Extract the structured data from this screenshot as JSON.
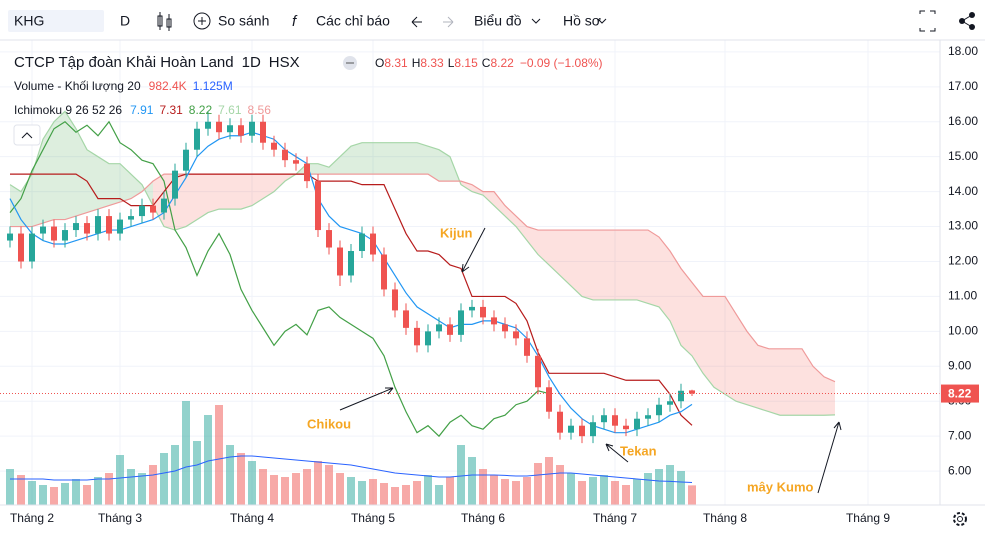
{
  "toolbar": {
    "symbol": "KHG",
    "interval": "D",
    "compare": "So sánh",
    "indicators": "Các chỉ báo",
    "chart_type": "Biểu đồ",
    "profile": "Hồ sơ"
  },
  "chart_data": {
    "type": "candlestick",
    "title": "CTCP Tập đoàn Khải Hoàn Land",
    "interval": "1D",
    "exchange": "HSX",
    "ohlc_prefixes": [
      "O",
      "H",
      "L",
      "C"
    ],
    "change": "−0.09 (−1.08%)",
    "up_color": "#26a69a",
    "down_color": "#ef5350",
    "open": [
      12.6,
      12.8,
      12.0,
      12.8,
      13.0,
      12.6,
      12.9,
      13.1,
      12.8,
      13.3,
      12.8,
      13.2,
      13.3,
      13.6,
      13.4,
      13.8,
      14.6,
      15.2,
      15.8,
      16.0,
      15.7,
      15.9,
      15.6,
      16.0,
      15.4,
      15.2,
      14.9,
      14.8,
      14.3,
      12.9,
      12.4,
      11.6,
      12.3,
      12.8,
      12.2,
      11.2,
      10.6,
      10.1,
      9.6,
      10.0,
      10.2,
      9.9,
      10.6,
      10.7,
      10.4,
      10.2,
      10.0,
      9.8,
      9.3,
      8.4,
      7.7,
      7.1,
      7.3,
      7.0,
      7.4,
      7.6,
      7.3,
      7.2,
      7.5,
      7.6,
      7.9,
      8.0,
      8.31
    ],
    "high": [
      13.0,
      13.0,
      13.0,
      13.2,
      13.2,
      13.1,
      13.3,
      13.3,
      13.5,
      13.5,
      13.4,
      13.5,
      13.8,
      13.8,
      14.0,
      14.8,
      15.4,
      16.0,
      16.3,
      16.2,
      16.1,
      16.1,
      16.2,
      16.2,
      15.6,
      15.4,
      15.1,
      15.0,
      14.5,
      13.1,
      12.6,
      12.5,
      13.0,
      13.0,
      12.4,
      11.4,
      10.8,
      10.3,
      10.2,
      10.4,
      10.4,
      10.8,
      10.9,
      10.9,
      10.6,
      10.4,
      10.2,
      10.0,
      9.5,
      8.6,
      7.9,
      7.5,
      7.5,
      7.6,
      7.8,
      7.8,
      7.5,
      7.7,
      7.8,
      8.1,
      8.2,
      8.5,
      8.33
    ],
    "low": [
      12.4,
      11.8,
      11.8,
      12.6,
      12.4,
      12.4,
      12.7,
      12.6,
      12.6,
      12.6,
      12.6,
      13.0,
      13.1,
      13.2,
      13.2,
      13.6,
      14.4,
      15.0,
      15.6,
      15.5,
      15.5,
      15.4,
      15.4,
      15.2,
      15.0,
      14.7,
      14.6,
      14.1,
      12.7,
      12.2,
      11.3,
      11.4,
      12.1,
      12.0,
      11.0,
      10.4,
      9.9,
      9.4,
      9.4,
      9.8,
      9.7,
      9.7,
      10.4,
      10.2,
      10.0,
      9.8,
      9.6,
      9.1,
      8.2,
      7.5,
      6.9,
      6.9,
      6.8,
      6.8,
      7.2,
      7.1,
      7.0,
      7.0,
      7.3,
      7.4,
      7.7,
      7.8,
      8.15
    ],
    "close": [
      12.8,
      12.0,
      12.8,
      13.0,
      12.6,
      12.9,
      13.1,
      12.8,
      13.3,
      12.8,
      13.2,
      13.3,
      13.6,
      13.4,
      13.8,
      14.6,
      15.2,
      15.8,
      16.0,
      15.7,
      15.9,
      15.6,
      16.0,
      15.4,
      15.2,
      14.9,
      14.8,
      14.3,
      12.9,
      12.4,
      11.6,
      12.3,
      12.8,
      12.2,
      11.2,
      10.6,
      10.1,
      9.6,
      10.0,
      10.2,
      9.9,
      10.6,
      10.7,
      10.4,
      10.2,
      10.0,
      9.8,
      9.3,
      8.4,
      7.7,
      7.1,
      7.3,
      7.0,
      7.4,
      7.6,
      7.3,
      7.2,
      7.5,
      7.6,
      7.9,
      8.0,
      8.3,
      8.22
    ],
    "volume": {
      "name": "Volume - Khối lượng 20",
      "last_label": "982.4K",
      "ma_last_label": "1.125M",
      "ma_color": "#2962ff",
      "values": [
        1800,
        1500,
        1200,
        1000,
        900,
        1100,
        1300,
        1000,
        1400,
        1600,
        2500,
        1800,
        1600,
        2000,
        2600,
        3000,
        5200,
        3200,
        4500,
        5000,
        3000,
        2600,
        2200,
        1800,
        1500,
        1400,
        1600,
        1800,
        2200,
        2000,
        1600,
        1400,
        1200,
        1300,
        1100,
        900,
        1000,
        1200,
        1500,
        1000,
        1400,
        3000,
        2400,
        1800,
        1500,
        1300,
        1200,
        1400,
        2100,
        2400,
        2000,
        1600,
        1200,
        1400,
        1500,
        1200,
        1000,
        1300,
        1600,
        1800,
        2000,
        1700,
        982.4
      ],
      "ma_values": [
        1300,
        1300,
        1300,
        1300,
        1250,
        1250,
        1250,
        1250,
        1300,
        1300,
        1350,
        1400,
        1450,
        1500,
        1600,
        1700,
        1900,
        2000,
        2200,
        2300,
        2400,
        2450,
        2450,
        2400,
        2350,
        2300,
        2250,
        2200,
        2150,
        2100,
        2050,
        2000,
        1900,
        1800,
        1700,
        1600,
        1550,
        1500,
        1450,
        1400,
        1400,
        1450,
        1500,
        1500,
        1500,
        1480,
        1450,
        1450,
        1500,
        1550,
        1600,
        1600,
        1550,
        1500,
        1450,
        1400,
        1350,
        1300,
        1250,
        1200,
        1180,
        1150,
        1125
      ]
    },
    "ichimoku": {
      "name": "Ichimoku 9 26 52 26",
      "tenkan": {
        "color": "#2196f3",
        "values": [
          13.8,
          13.2,
          12.8,
          12.6,
          12.5,
          12.5,
          12.6,
          12.7,
          12.8,
          12.9,
          12.9,
          13.0,
          13.1,
          13.2,
          13.4,
          13.9,
          14.4,
          15.0,
          15.3,
          15.5,
          15.6,
          15.6,
          15.7,
          15.6,
          15.5,
          15.2,
          15.0,
          14.8,
          13.8,
          13.3,
          13.0,
          12.9,
          12.8,
          12.6,
          12.1,
          11.6,
          11.1,
          10.7,
          10.5,
          10.3,
          10.1,
          10.2,
          10.2,
          10.3,
          10.3,
          10.2,
          10.1,
          9.8,
          9.3,
          8.7,
          8.2,
          7.8,
          7.5,
          7.3,
          7.2,
          7.1,
          7.1,
          7.2,
          7.3,
          7.4,
          7.6,
          7.7,
          7.91
        ]
      },
      "kijun": {
        "color": "#b71c1c",
        "values": [
          14.5,
          14.5,
          14.5,
          14.5,
          14.5,
          14.5,
          14.5,
          14.3,
          13.8,
          13.8,
          13.8,
          13.6,
          13.6,
          13.6,
          14.0,
          14.4,
          14.5,
          14.5,
          14.5,
          14.5,
          14.5,
          14.5,
          14.5,
          14.5,
          14.5,
          14.5,
          14.5,
          14.5,
          14.3,
          14.3,
          14.3,
          14.3,
          14.2,
          14.2,
          14.2,
          13.5,
          12.8,
          12.3,
          12.3,
          12.2,
          11.9,
          11.8,
          11.0,
          11.0,
          11.0,
          11.0,
          10.8,
          10.3,
          9.4,
          8.8,
          8.8,
          8.8,
          8.8,
          8.8,
          8.8,
          8.7,
          8.6,
          8.6,
          8.6,
          8.6,
          8.2,
          7.6,
          7.31
        ]
      },
      "chikou": {
        "color": "#43a047",
        "values": [
          13.4,
          13.8,
          14.6,
          15.2,
          15.8,
          16.0,
          15.7,
          15.9,
          15.6,
          16.0,
          15.4,
          15.2,
          14.9,
          14.8,
          14.3,
          12.9,
          12.4,
          11.6,
          12.3,
          12.8,
          12.2,
          11.2,
          10.6,
          10.1,
          9.6,
          10.0,
          10.2,
          9.9,
          10.6,
          10.7,
          10.4,
          10.2,
          10.0,
          9.8,
          9.3,
          8.4,
          7.7,
          7.1,
          7.3,
          7.0,
          7.4,
          7.6,
          7.3,
          7.2,
          7.5,
          7.6,
          7.9,
          8.0,
          8.3,
          8.22
        ]
      },
      "span_a": {
        "color": "#a5d6a7",
        "fill": "rgba(67,160,71,0.18)",
        "values": [
          14.2,
          14.0,
          14.5,
          15.5,
          16.0,
          16.3,
          15.8,
          15.2,
          15.0,
          14.8,
          14.8,
          14.5,
          14.2,
          13.6,
          13.0,
          12.9,
          13.0,
          13.2,
          13.4,
          13.5,
          13.5,
          13.5,
          13.6,
          13.8,
          14.0,
          14.3,
          14.5,
          14.8,
          14.8,
          14.7,
          15.0,
          15.3,
          15.4,
          15.4,
          15.4,
          15.4,
          15.4,
          15.4,
          15.3,
          15.2,
          15.0,
          14.2,
          14.0,
          13.9,
          13.6,
          13.3,
          13.0,
          12.6,
          12.2,
          11.9,
          11.6,
          11.3,
          11.0,
          10.9,
          10.9,
          10.9,
          10.9,
          10.9,
          10.8,
          10.7,
          10.3,
          9.6,
          9.3,
          8.8,
          8.4,
          8.2,
          8.0,
          7.9,
          7.8,
          7.7,
          7.6,
          7.6,
          7.6,
          7.6,
          7.6,
          7.61
        ]
      },
      "span_b": {
        "color": "#ef9a9a",
        "fill": "rgba(244,67,54,0.16)",
        "values": [
          13.0,
          13.0,
          13.0,
          13.1,
          13.2,
          13.2,
          13.3,
          13.4,
          13.5,
          13.6,
          13.7,
          13.8,
          14.0,
          14.3,
          14.5,
          14.5,
          14.5,
          14.5,
          14.5,
          14.5,
          14.5,
          14.5,
          14.5,
          14.5,
          14.5,
          14.5,
          14.5,
          14.5,
          14.5,
          14.5,
          14.5,
          14.5,
          14.5,
          14.5,
          14.5,
          14.5,
          14.5,
          14.5,
          14.5,
          14.3,
          14.3,
          14.3,
          14.2,
          14.0,
          14.0,
          13.6,
          13.3,
          13.0,
          12.9,
          12.9,
          12.9,
          12.9,
          12.9,
          12.9,
          12.9,
          12.9,
          12.9,
          12.9,
          12.9,
          12.7,
          12.3,
          11.8,
          11.4,
          11.0,
          11.0,
          11.0,
          10.5,
          10.0,
          9.6,
          9.5,
          9.5,
          9.5,
          9.5,
          9.0,
          8.7,
          8.56
        ]
      }
    },
    "ylim": [
      5.03,
      18.34
    ],
    "yticks": [
      {
        "value": 6,
        "label": "6.00"
      },
      {
        "value": 7,
        "label": "7.00"
      },
      {
        "value": 8,
        "label": "8.00"
      },
      {
        "value": 9,
        "label": "9.00"
      },
      {
        "value": 10,
        "label": "10.00"
      },
      {
        "value": 11,
        "label": "11.00"
      },
      {
        "value": 12,
        "label": "12.00"
      },
      {
        "value": 13,
        "label": "13.00"
      },
      {
        "value": 14,
        "label": "14.00"
      },
      {
        "value": 15,
        "label": "15.00"
      },
      {
        "value": 16,
        "label": "16.00"
      },
      {
        "value": 17,
        "label": "17.00"
      },
      {
        "value": 18,
        "label": "18.00"
      }
    ],
    "xticks": [
      {
        "value": 2,
        "label": "Tháng 2"
      },
      {
        "value": 10,
        "label": "Tháng 3"
      },
      {
        "value": 22,
        "label": "Tháng 4"
      },
      {
        "value": 33,
        "label": "Tháng 5"
      },
      {
        "value": 43,
        "label": "Tháng 6"
      },
      {
        "value": 55,
        "label": "Tháng 7"
      },
      {
        "value": 65,
        "label": "Tháng 8"
      },
      {
        "value": 78,
        "label": "Tháng 9"
      }
    ],
    "annotations": [
      "Kijun",
      "Chikou",
      "Tekan",
      "mây Kumo"
    ]
  }
}
